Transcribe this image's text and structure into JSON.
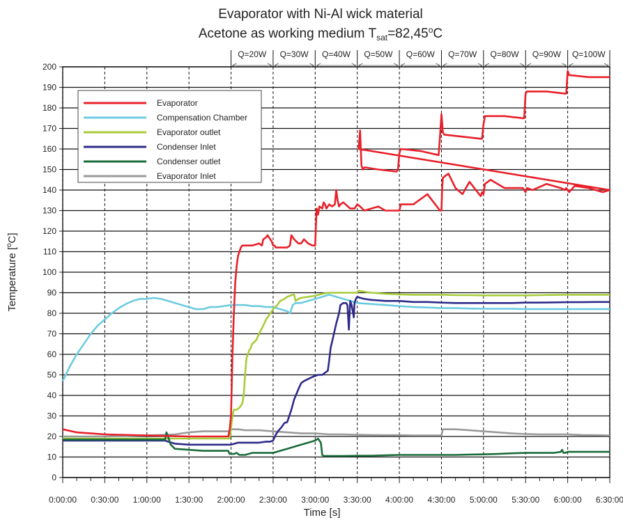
{
  "chart_data": {
    "type": "line",
    "title_line1": "Evaporator with Ni-Al wick material",
    "title_line2_prefix": "Acetone as working medium  T",
    "title_line2_sub": "sat",
    "title_line2_value": "=82,45",
    "title_line2_deg": "o",
    "title_line2_unit": "C",
    "xlabel": "Time [s]",
    "ylabel_main": "Temperature [",
    "ylabel_deg": "o",
    "ylabel_end": "C]",
    "xlim": [
      0,
      390
    ],
    "ylim": [
      0,
      200
    ],
    "x_ticks": [
      0,
      30,
      60,
      90,
      120,
      150,
      180,
      210,
      240,
      270,
      300,
      330,
      360,
      390
    ],
    "x_tick_labels": [
      "0:00:00",
      "0:30:00",
      "1:00:00",
      "1:30:00",
      "2:00:00",
      "2:30:00",
      "3:00:00",
      "3:30:00",
      "4:00:00",
      "4:30:00",
      "5:00:00",
      "5:30:00",
      "6:00:00",
      "6:30:00"
    ],
    "y_ticks": [
      0,
      10,
      20,
      30,
      40,
      50,
      60,
      70,
      80,
      90,
      100,
      110,
      120,
      130,
      140,
      150,
      160,
      170,
      180,
      190,
      200
    ],
    "grid": true,
    "legend_position": "top-left",
    "power_steps": [
      {
        "label": "Q=20W",
        "start": 120,
        "end": 150
      },
      {
        "label": "Q=30W",
        "start": 150,
        "end": 180
      },
      {
        "label": "Q=40W",
        "start": 180,
        "end": 210
      },
      {
        "label": "Q=50W",
        "start": 210,
        "end": 240
      },
      {
        "label": "Q=60W",
        "start": 240,
        "end": 270
      },
      {
        "label": "Q=70W",
        "start": 270,
        "end": 300
      },
      {
        "label": "Q=80W",
        "start": 300,
        "end": 330
      },
      {
        "label": "Q=90W",
        "start": 330,
        "end": 360
      },
      {
        "label": "Q=100W",
        "start": 360,
        "end": 390
      }
    ],
    "series": [
      {
        "name": "Evaporator",
        "color": "#e8202a",
        "x": [
          0,
          10,
          30,
          60,
          90,
          118,
          119,
          120,
          121,
          122,
          123,
          124,
          125,
          126,
          127,
          128,
          130,
          135,
          140,
          142,
          143,
          145,
          146,
          148,
          149,
          150,
          151,
          152,
          155,
          158,
          160,
          162,
          163,
          165,
          168,
          170,
          172,
          175,
          178,
          180,
          181,
          182,
          183,
          185,
          186,
          187,
          188,
          190,
          192,
          194,
          195,
          196,
          197,
          198,
          200,
          205,
          208,
          210,
          212,
          215,
          220,
          225,
          230,
          240,
          241,
          250,
          260,
          269,
          270,
          270.5,
          271,
          275,
          280,
          285,
          290,
          298,
          299,
          300,
          301,
          305,
          315,
          328,
          329,
          330,
          331,
          335,
          345,
          355,
          358,
          359,
          360,
          361,
          365,
          375,
          385,
          390
        ],
        "y": [
          23.5,
          22,
          21,
          20.5,
          20,
          20,
          23,
          30,
          60,
          80,
          95,
          103,
          108,
          110,
          112,
          113,
          113,
          113,
          114,
          113,
          116,
          117,
          118,
          116,
          115,
          113,
          113,
          112,
          112,
          112,
          112,
          113,
          118,
          116,
          114,
          114,
          116,
          114,
          113,
          113,
          131,
          128,
          132,
          131,
          134,
          133,
          131,
          133,
          132,
          133,
          140,
          135,
          132,
          133,
          134,
          131,
          131,
          133,
          132,
          130,
          131,
          132,
          130,
          130,
          133,
          133,
          138,
          130,
          130,
          141,
          146,
          148,
          141,
          138,
          144,
          137,
          139,
          138,
          143,
          145,
          141,
          141,
          140,
          139,
          141,
          140,
          143,
          141,
          140,
          141,
          140,
          139,
          142,
          141,
          139,
          140
        ],
        "steps_x": [
          211,
          212,
          213,
          214,
          215,
          216,
          225,
          238,
          239,
          240,
          241,
          255,
          268,
          269,
          270,
          271,
          272,
          285,
          298,
          299,
          300,
          301,
          315,
          328,
          329,
          330,
          331,
          345,
          358,
          359,
          360,
          361,
          375,
          390
        ],
        "steps_y": [
          160,
          169,
          152,
          150,
          151,
          151,
          150,
          149,
          150,
          158,
          160,
          159,
          157,
          166,
          177,
          168,
          167,
          166,
          165,
          165,
          172,
          176,
          176,
          175,
          175,
          187,
          188,
          188,
          187,
          187,
          198,
          196,
          195,
          195
        ]
      },
      {
        "name": "Compensation Chamber",
        "color": "#6dcbe0",
        "x": [
          0,
          5,
          10,
          15,
          20,
          25,
          30,
          35,
          40,
          45,
          50,
          55,
          60,
          65,
          70,
          75,
          80,
          85,
          90,
          95,
          100,
          105,
          110,
          115,
          120,
          125,
          130,
          135,
          140,
          145,
          150,
          155,
          160,
          162,
          164,
          166,
          170,
          175,
          180,
          185,
          190,
          195,
          200,
          205,
          210,
          220,
          230,
          240,
          250,
          260,
          270,
          280,
          290,
          300,
          310,
          320,
          330,
          340,
          350,
          360,
          370,
          380,
          390
        ],
        "y": [
          47,
          54,
          60,
          65,
          70,
          74,
          77,
          80,
          82.5,
          84.5,
          86,
          87,
          87,
          87.5,
          87,
          86,
          85,
          84,
          83,
          82,
          82,
          83,
          83,
          83.5,
          84,
          84,
          84,
          83.5,
          83.5,
          83,
          83,
          82,
          81,
          80,
          84,
          85,
          85,
          86,
          87,
          88,
          89,
          88,
          87,
          86,
          85,
          84.5,
          84,
          83.5,
          83,
          82.8,
          82.5,
          82.5,
          82.3,
          82.2,
          82.2,
          82.2,
          82,
          82,
          82,
          82,
          82,
          82,
          82
        ]
      },
      {
        "name": "Evaporator outlet",
        "color": "#a8cc3a",
        "x": [
          0,
          30,
          60,
          90,
          119,
          120,
          121,
          122,
          124,
          126,
          128,
          129,
          130,
          131,
          132,
          133,
          134,
          135,
          138,
          140,
          143,
          145,
          148,
          150,
          153,
          155,
          158,
          160,
          162,
          164,
          165,
          166,
          168,
          170,
          175,
          180,
          185,
          190,
          195,
          200,
          205,
          210,
          211,
          215,
          220,
          230,
          240,
          250,
          260,
          270,
          280,
          290,
          300,
          310,
          320,
          330,
          340,
          350,
          360,
          370,
          380,
          390
        ],
        "y": [
          19,
          19,
          19,
          19,
          19,
          24,
          30,
          33,
          33,
          34,
          36,
          40,
          50,
          58,
          60,
          62,
          63,
          65,
          67,
          70,
          74,
          77,
          80,
          82,
          84,
          86,
          87,
          88,
          88.5,
          89,
          89,
          86,
          87,
          87.5,
          88,
          88.5,
          89.5,
          90,
          90,
          90,
          90,
          90,
          91,
          90.5,
          90,
          89.5,
          89.2,
          89,
          89,
          89,
          88.8,
          88.8,
          88.7,
          88.7,
          88.7,
          88.7,
          88.8,
          88.9,
          89,
          89,
          89,
          89
        ]
      },
      {
        "name": "Condenser Inlet",
        "color": "#2e2a8a",
        "x": [
          0,
          30,
          60,
          73,
          75,
          80,
          90,
          100,
          110,
          120,
          125,
          130,
          140,
          145,
          148,
          150,
          152,
          154,
          156,
          158,
          160,
          163,
          165,
          168,
          170,
          172,
          175,
          178,
          180,
          182,
          185,
          187,
          189,
          190,
          191,
          193,
          195,
          197,
          198,
          200,
          202,
          203,
          204,
          205,
          206,
          207,
          207.5,
          208,
          209,
          210,
          212,
          215,
          220,
          230,
          240,
          250,
          260,
          270,
          280,
          290,
          300,
          310,
          320,
          330,
          340,
          350,
          360,
          370,
          380,
          390
        ],
        "y": [
          18,
          18,
          18,
          18,
          17.5,
          16.5,
          16,
          16,
          16,
          16,
          17,
          17,
          17,
          17.5,
          17.5,
          18,
          21,
          23,
          24.5,
          26.5,
          27,
          33,
          38,
          43,
          46,
          47,
          48,
          49,
          49.5,
          50,
          50,
          51,
          52,
          57,
          63,
          69,
          75,
          80,
          84,
          85,
          85,
          84,
          72,
          86,
          84,
          80,
          78,
          85,
          87,
          88,
          87.5,
          87,
          86.5,
          86,
          86,
          85.5,
          85.5,
          85.2,
          85,
          85,
          85,
          85,
          85,
          85.2,
          85.2,
          85.3,
          85.4,
          85.4,
          85.5,
          85.5
        ]
      },
      {
        "name": "Condenser outlet",
        "color": "#1a6b3a",
        "x": [
          0,
          30,
          60,
          73,
          74,
          75,
          77,
          80,
          90,
          100,
          110,
          118,
          119,
          120,
          122,
          124,
          126,
          128,
          130,
          135,
          140,
          145,
          150,
          155,
          160,
          165,
          170,
          175,
          180,
          182,
          183,
          184,
          185,
          186,
          187,
          190,
          195,
          200,
          210,
          220,
          230,
          240,
          250,
          260,
          270,
          280,
          290,
          300,
          310,
          320,
          330,
          340,
          350,
          355,
          356,
          357,
          358,
          360,
          370,
          380,
          390
        ],
        "y": [
          18.5,
          18.5,
          18.5,
          18.5,
          22,
          20,
          16,
          14,
          13.5,
          13,
          13,
          13,
          11.5,
          11.5,
          11.5,
          12,
          11,
          11,
          11,
          12,
          12,
          12,
          12,
          13,
          14,
          15,
          16,
          17,
          18,
          19,
          18,
          17,
          11,
          10.5,
          10.5,
          10.5,
          10.5,
          10.5,
          10.6,
          10.6,
          10.8,
          11,
          11,
          11,
          11,
          11,
          11.2,
          11.3,
          11.5,
          11.8,
          12,
          12,
          12,
          12.5,
          13.5,
          12,
          12,
          12.5,
          12.5,
          12.5,
          12.5
        ]
      },
      {
        "name": "Evaporator Inlet",
        "color": "#9a9a9a",
        "x": [
          0,
          30,
          60,
          80,
          90,
          100,
          110,
          118,
          119,
          120,
          125,
          130,
          140,
          150,
          160,
          170,
          180,
          190,
          200,
          210,
          220,
          230,
          240,
          250,
          260,
          269,
          270,
          271,
          280,
          290,
          300,
          310,
          320,
          330,
          340,
          350,
          360,
          370,
          380,
          390
        ],
        "y": [
          20,
          20,
          20.5,
          21,
          22,
          22.5,
          22.5,
          22.5,
          22,
          23.5,
          23.5,
          23,
          23,
          22.5,
          22,
          21.5,
          21.5,
          21,
          21,
          20.8,
          20.7,
          20.6,
          20.6,
          20.5,
          20.5,
          20.5,
          20.5,
          23.5,
          23.5,
          23,
          22.5,
          22,
          21.5,
          21.2,
          21,
          21,
          21,
          20.7,
          20.6,
          20.5
        ]
      }
    ]
  }
}
